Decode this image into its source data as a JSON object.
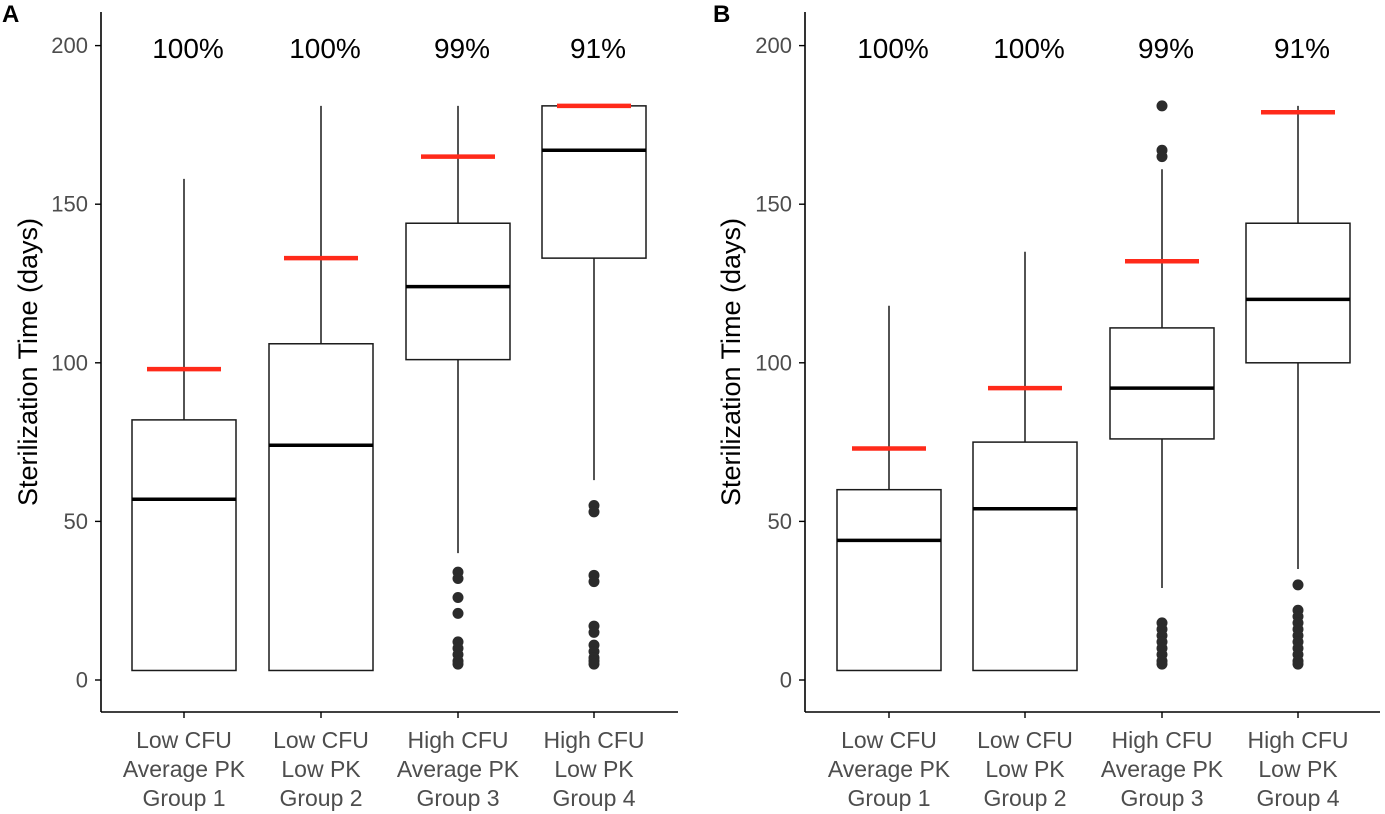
{
  "colors": {
    "box_stroke": "#1a1a1a",
    "median": "#000000",
    "target_line": "#ff2a1a",
    "outlier": "#2b2b2b",
    "axis": "#000000",
    "tick_text": "#4d4d4d"
  },
  "chart_data": [
    {
      "panel_label": "A",
      "type": "box",
      "ylabel": "Sterilization Time (days)",
      "ylim": [
        -10,
        210
      ],
      "yticks": [
        "0",
        "50",
        "100",
        "150",
        "200"
      ],
      "categories": [
        {
          "lines": [
            "Low CFU",
            "Average PK",
            "Group 1"
          ],
          "percent": "100%",
          "whisker_low": 3,
          "q1": 3,
          "median": 57,
          "q3": 82,
          "whisker_high": 158,
          "target": 98,
          "outliers": []
        },
        {
          "lines": [
            "Low CFU",
            "Low PK",
            "Group 2"
          ],
          "percent": "100%",
          "whisker_low": 3,
          "q1": 3,
          "median": 74,
          "q3": 106,
          "whisker_high": 181,
          "target": 133,
          "outliers": []
        },
        {
          "lines": [
            "High CFU",
            "Average PK",
            "Group 3"
          ],
          "percent": "99%",
          "whisker_low": 40,
          "q1": 101,
          "median": 124,
          "q3": 144,
          "whisker_high": 181,
          "target": 165,
          "outliers": [
            34,
            32,
            26,
            21,
            12,
            10,
            8,
            6,
            5
          ]
        },
        {
          "lines": [
            "High CFU",
            "Low PK",
            "Group 4"
          ],
          "percent": "91%",
          "whisker_low": 63,
          "q1": 133,
          "median": 167,
          "q3": 181,
          "whisker_high": 181,
          "target": 181,
          "outliers": [
            55,
            53,
            33,
            31,
            17,
            15,
            11,
            9,
            7,
            6,
            5
          ]
        }
      ]
    },
    {
      "panel_label": "B",
      "type": "box",
      "ylabel": "Sterilization Time (days)",
      "ylim": [
        -10,
        210
      ],
      "yticks": [
        "0",
        "50",
        "100",
        "150",
        "200"
      ],
      "categories": [
        {
          "lines": [
            "Low CFU",
            "Average PK",
            "Group 1"
          ],
          "percent": "100%",
          "whisker_low": 3,
          "q1": 3,
          "median": 44,
          "q3": 60,
          "whisker_high": 118,
          "target": 73,
          "outliers": []
        },
        {
          "lines": [
            "Low CFU",
            "Low PK",
            "Group 2"
          ],
          "percent": "100%",
          "whisker_low": 3,
          "q1": 3,
          "median": 54,
          "q3": 75,
          "whisker_high": 135,
          "target": 92,
          "outliers": []
        },
        {
          "lines": [
            "High CFU",
            "Average PK",
            "Group 3"
          ],
          "percent": "99%",
          "whisker_low": 29,
          "q1": 76,
          "median": 92,
          "q3": 111,
          "whisker_high": 161,
          "target": 132,
          "outliers": [
            181,
            167,
            165,
            18,
            16,
            14,
            12,
            10,
            8,
            6,
            5
          ]
        },
        {
          "lines": [
            "High CFU",
            "Low PK",
            "Group 4"
          ],
          "percent": "91%",
          "whisker_low": 35,
          "q1": 100,
          "median": 120,
          "q3": 144,
          "whisker_high": 181,
          "target": 179,
          "outliers": [
            30,
            22,
            20,
            18,
            16,
            14,
            12,
            10,
            8,
            6,
            5
          ]
        }
      ]
    }
  ]
}
